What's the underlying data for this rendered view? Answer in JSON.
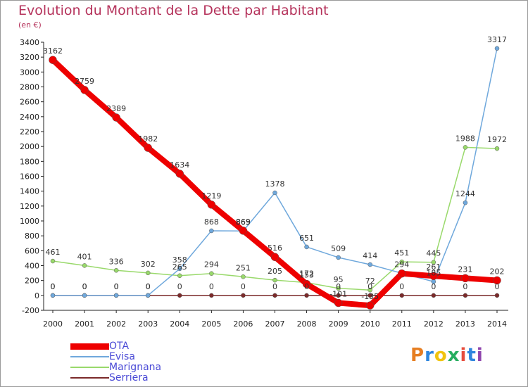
{
  "title": "Evolution du Montant de la Dette par Habitant",
  "unit": "(en €)",
  "logo": {
    "text": "Proxiti",
    "colors": [
      "#e67e22",
      "#2e86de",
      "#f1c40f",
      "#27ae60",
      "#e74c3c",
      "#2e86de",
      "#8e44ad"
    ]
  },
  "chart_data": {
    "type": "line",
    "title": "Evolution du Montant de la Dette par Habitant",
    "ylabel": "(en €)",
    "xlabel": "",
    "x": [
      2000,
      2001,
      2002,
      2003,
      2004,
      2005,
      2006,
      2007,
      2008,
      2009,
      2010,
      2011,
      2012,
      2013,
      2014
    ],
    "ylim": [
      -200,
      3400
    ],
    "yticks": [
      -200,
      0,
      200,
      400,
      600,
      800,
      1000,
      1200,
      1400,
      1600,
      1800,
      2000,
      2200,
      2400,
      2600,
      2800,
      3000,
      3200,
      3400
    ],
    "grid": false,
    "legend": "bottom-left",
    "series": [
      {
        "name": "Serriera",
        "color": "#7b2a2a",
        "width": 1.5,
        "values": [
          0,
          0,
          0,
          0,
          0,
          0,
          0,
          0,
          0,
          0,
          0,
          0,
          0,
          0,
          0
        ],
        "labels": [
          "0",
          "0",
          "0",
          "0",
          "0",
          "0",
          "0",
          "0",
          "0",
          "0",
          "0",
          "0",
          "0",
          "0",
          "0"
        ]
      },
      {
        "name": "Marignana",
        "color": "#99d96b",
        "width": 1.5,
        "values": [
          461,
          401,
          336,
          302,
          265,
          294,
          251,
          205,
          172,
          95,
          72,
          451,
          445,
          1988,
          1972
        ],
        "labels": [
          "461",
          "401",
          "336",
          "302",
          "265",
          "294",
          "251",
          "205",
          "172",
          "95",
          "72",
          "451",
          "445",
          "1988",
          "1972"
        ]
      },
      {
        "name": "Evisa",
        "color": "#6fa8dc",
        "width": 1.5,
        "values": [
          0,
          0,
          0,
          0,
          358,
          868,
          865,
          1378,
          651,
          509,
          414,
          298,
          185,
          1244,
          3317
        ],
        "labels": [
          "0",
          "0",
          "0",
          "0",
          "358",
          "868",
          "865",
          "1378",
          "651",
          "509",
          "414",
          "",
          "185",
          "1244",
          "3317"
        ]
      },
      {
        "name": "OTA",
        "color": "#ee0000",
        "width": 8,
        "values": [
          3162,
          2759,
          2389,
          1982,
          1634,
          1219,
          869,
          516,
          153,
          -101,
          -135,
          294,
          261,
          231,
          202
        ],
        "labels": [
          "3162",
          "2759",
          "2389",
          "1982",
          "1634",
          "1219",
          "869",
          "516",
          "153",
          "-101",
          "-135",
          "294",
          "261",
          "231",
          "202"
        ]
      }
    ]
  }
}
